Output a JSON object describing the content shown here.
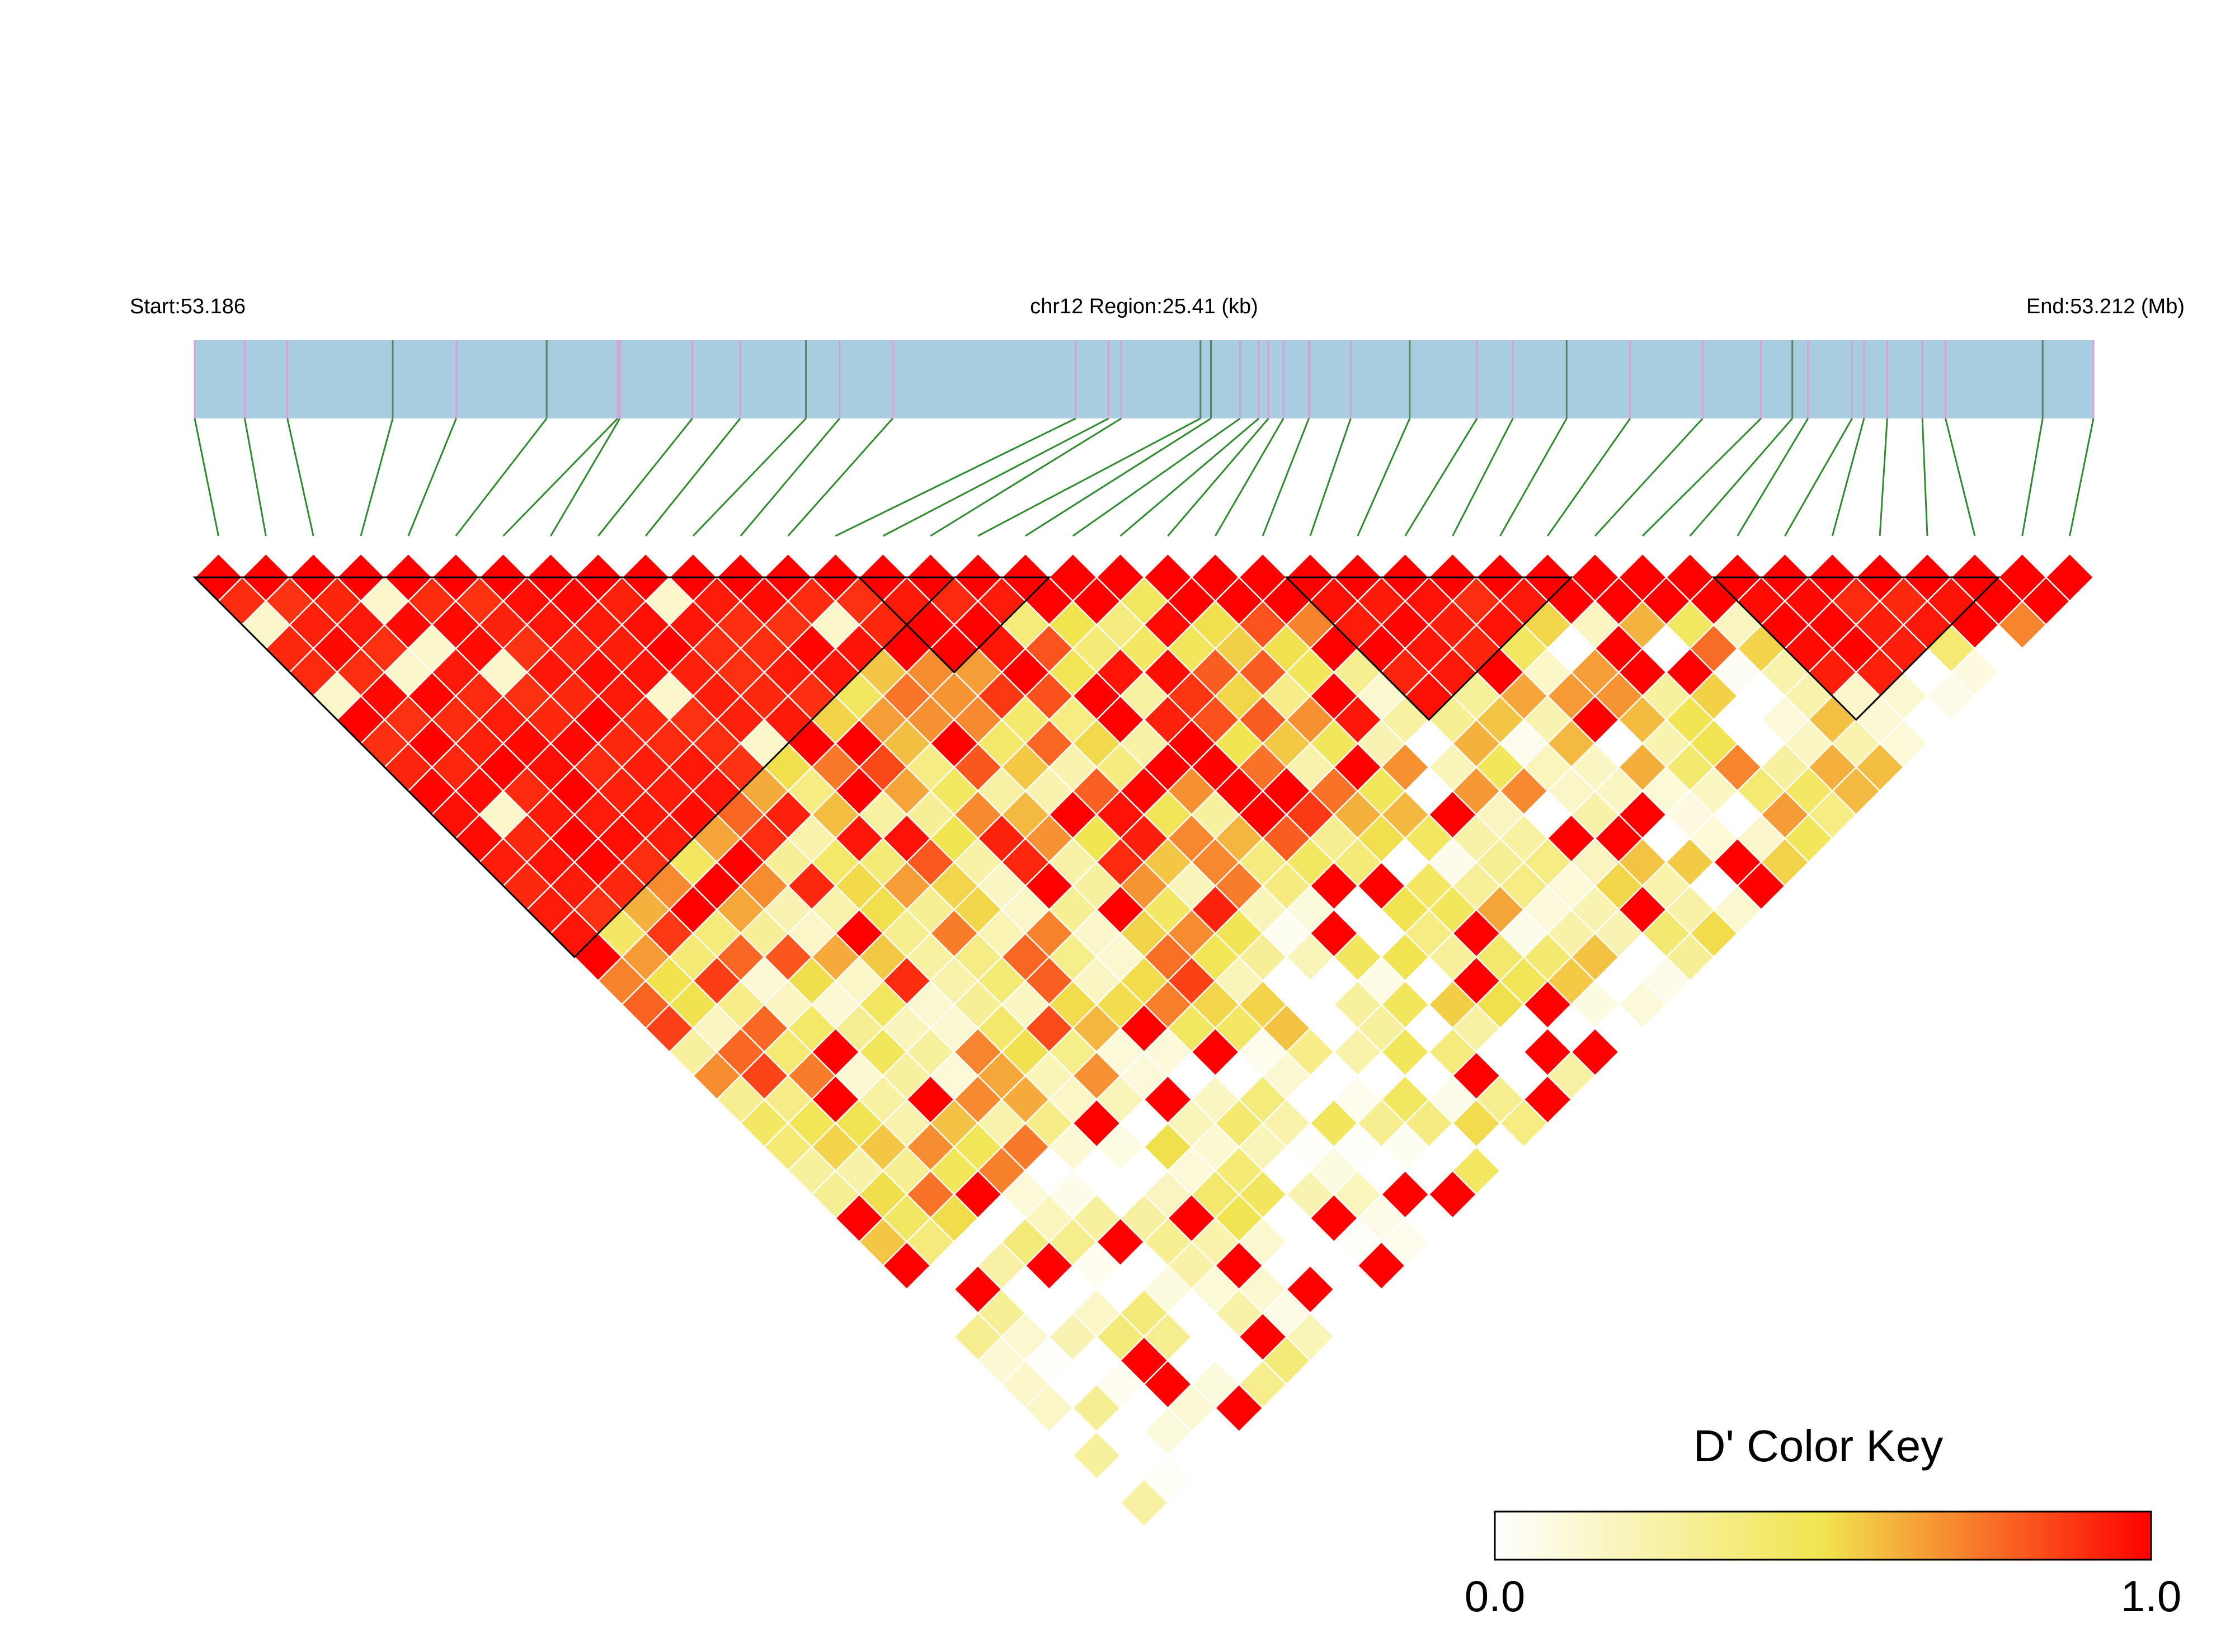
{
  "chart_data": {
    "type": "heatmap",
    "subtype": "linkage-disequilibrium-triangle",
    "header": {
      "start_label": "Start:53.186",
      "region_label": "chr12 Region:25.41 (kb)",
      "end_label": "End:53.212 (Mb)"
    },
    "region": {
      "chromosome": "chr12",
      "start_mb": 53.186,
      "end_mb": 53.212,
      "length_kb": 25.41
    },
    "num_snps": 40,
    "snp_positions_kb": [
      0.0,
      0.67,
      1.24,
      2.65,
      3.5,
      4.71,
      5.66,
      5.69,
      6.66,
      7.3,
      8.18,
      8.63,
      9.34,
      11.79,
      12.23,
      12.4,
      13.46,
      13.6,
      13.99,
      14.24,
      14.37,
      14.57,
      14.91,
      15.47,
      16.26,
      17.16,
      17.64,
      18.36,
      19.21,
      20.18,
      20.96,
      21.38,
      21.59,
      22.18,
      22.34,
      22.65,
      23.12,
      23.43,
      24.73,
      25.41
    ],
    "marker_colors": [
      "#d99ed9",
      "#5f7f5f"
    ],
    "band_color": "#a8cde0",
    "connector_color": "#2e8b2e",
    "blocks": [
      {
        "first_snp": 1,
        "last_snp": 16
      },
      {
        "first_snp": 15,
        "last_snp": 18
      },
      {
        "first_snp": 24,
        "last_snp": 29
      },
      {
        "first_snp": 33,
        "last_snp": 38
      }
    ],
    "dprime_palette": {
      "low": "#ffffff",
      "mid": "#f1e44f",
      "high": "#ff0000"
    },
    "color_key": {
      "title": "D' Color Key",
      "min_label": "0.0",
      "max_label": "1.0",
      "range": [
        0,
        1
      ]
    }
  }
}
